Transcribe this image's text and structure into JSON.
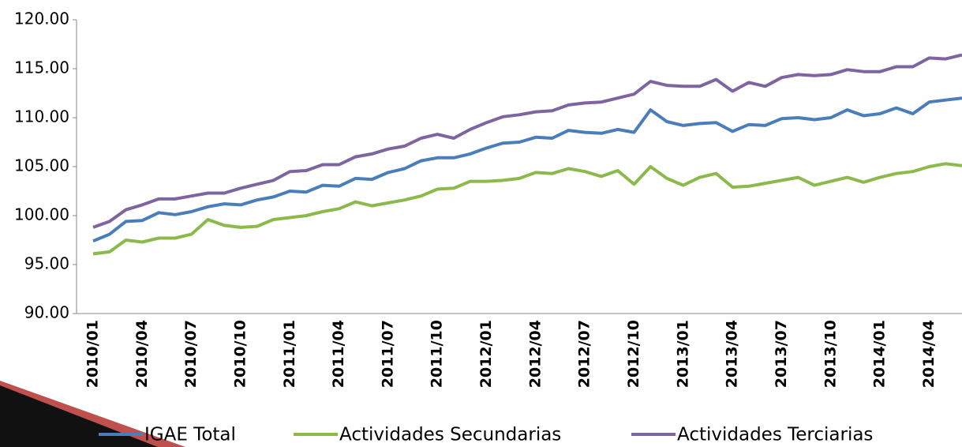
{
  "chart_data": {
    "type": "line",
    "categories": [
      "2010/01",
      null,
      null,
      "2010/04",
      null,
      null,
      "2010/07",
      null,
      null,
      "2010/10",
      null,
      null,
      "2011/01",
      null,
      null,
      "2011/04",
      null,
      null,
      "2011/07",
      null,
      null,
      "2011/10",
      null,
      null,
      "2012/01",
      null,
      null,
      "2012/04",
      null,
      null,
      "2012/07",
      null,
      null,
      "2012/10",
      null,
      null,
      "2013/01",
      null,
      null,
      "2013/04",
      null,
      null,
      "2013/07",
      null,
      null,
      "2013/10",
      null,
      null,
      "2014/01",
      null,
      null,
      "2014/04",
      null,
      null
    ],
    "series": [
      {
        "name": "IGAE Total",
        "color": "#4a7ebb",
        "values": [
          97.4,
          98.1,
          99.4,
          99.5,
          100.3,
          100.1,
          100.4,
          100.9,
          101.2,
          101.1,
          101.6,
          101.9,
          102.5,
          102.4,
          103.1,
          103.0,
          103.8,
          103.7,
          104.4,
          104.8,
          105.6,
          105.9,
          105.9,
          106.3,
          106.9,
          107.4,
          107.5,
          108.0,
          107.9,
          108.7,
          108.5,
          108.4,
          108.8,
          108.5,
          110.8,
          109.6,
          109.2,
          109.4,
          109.5,
          108.6,
          109.3,
          109.2,
          109.9,
          110.0,
          109.8,
          110.0,
          110.8,
          110.2,
          110.4,
          111.0,
          110.4,
          111.6,
          111.8,
          112.0
        ]
      },
      {
        "name": "Actividades Secundarias",
        "color": "#8cb94c",
        "values": [
          96.1,
          96.3,
          97.5,
          97.3,
          97.7,
          97.7,
          98.1,
          99.6,
          99.0,
          98.8,
          98.9,
          99.6,
          99.8,
          100.0,
          100.4,
          100.7,
          101.4,
          101.0,
          101.3,
          101.6,
          102.0,
          102.7,
          102.8,
          103.5,
          103.5,
          103.6,
          103.8,
          104.4,
          104.3,
          104.8,
          104.5,
          104.0,
          104.6,
          103.2,
          105.0,
          103.8,
          103.1,
          103.9,
          104.3,
          102.9,
          103.0,
          103.3,
          103.6,
          103.9,
          103.1,
          103.5,
          103.9,
          103.4,
          103.9,
          104.3,
          104.5,
          105.0,
          105.3,
          105.1
        ]
      },
      {
        "name": "Actividades Terciarias",
        "color": "#7f64a2",
        "values": [
          98.8,
          99.4,
          100.6,
          101.1,
          101.7,
          101.7,
          102.0,
          102.3,
          102.3,
          102.8,
          103.2,
          103.6,
          104.5,
          104.6,
          105.2,
          105.2,
          106.0,
          106.3,
          106.8,
          107.1,
          107.9,
          108.3,
          107.9,
          108.8,
          109.5,
          110.1,
          110.3,
          110.6,
          110.7,
          111.3,
          111.5,
          111.6,
          112.0,
          112.4,
          113.7,
          113.3,
          113.2,
          113.2,
          113.9,
          112.7,
          113.6,
          113.2,
          114.1,
          114.4,
          114.3,
          114.4,
          114.9,
          114.7,
          114.7,
          115.2,
          115.2,
          116.1,
          116.0,
          116.4
        ]
      }
    ],
    "ylim": [
      90,
      120
    ],
    "yticks": [
      {
        "value": 90,
        "label": "90.00"
      },
      {
        "value": 95,
        "label": "95.00"
      },
      {
        "value": 100,
        "label": "100.00"
      },
      {
        "value": 105,
        "label": "105.00"
      },
      {
        "value": 110,
        "label": "110.00"
      },
      {
        "value": 115,
        "label": "115.00"
      },
      {
        "value": 120,
        "label": "120.00"
      }
    ],
    "legend": "bottom"
  }
}
